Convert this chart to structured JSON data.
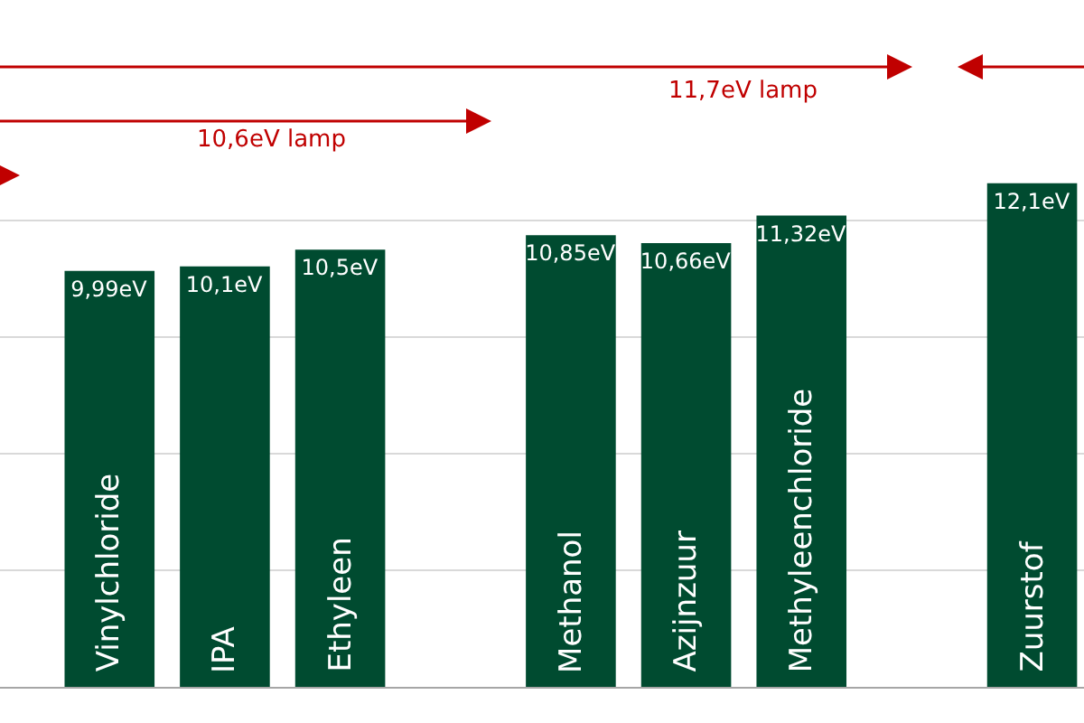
{
  "chart_data": {
    "type": "bar",
    "categories": [
      "Vinylchloride",
      "IPA",
      "Ethyleen",
      null,
      "Methanol",
      "Azijnzuur",
      "Methyleenchloride",
      null,
      "Zuurstof"
    ],
    "values": [
      9.99,
      10.1,
      10.5,
      null,
      10.85,
      10.66,
      11.32,
      null,
      12.1
    ],
    "value_labels": [
      "9,99eV",
      "10,1eV",
      "10,5eV",
      null,
      "10,85eV",
      "10,66eV",
      "11,32eV",
      null,
      "12,1eV"
    ],
    "color": "#004b30",
    "ylim": [
      0,
      16.5
    ],
    "yticks": [
      {
        "value": 2.8,
        "label": null
      },
      {
        "value": 5.6,
        "label": null
      },
      {
        "value": 8.4,
        "label": null
      },
      {
        "value": 11.2,
        "label": null
      }
    ],
    "grid": "y",
    "annotations": [
      "10,6eV lamp",
      "11,7eV lamp"
    ]
  }
}
